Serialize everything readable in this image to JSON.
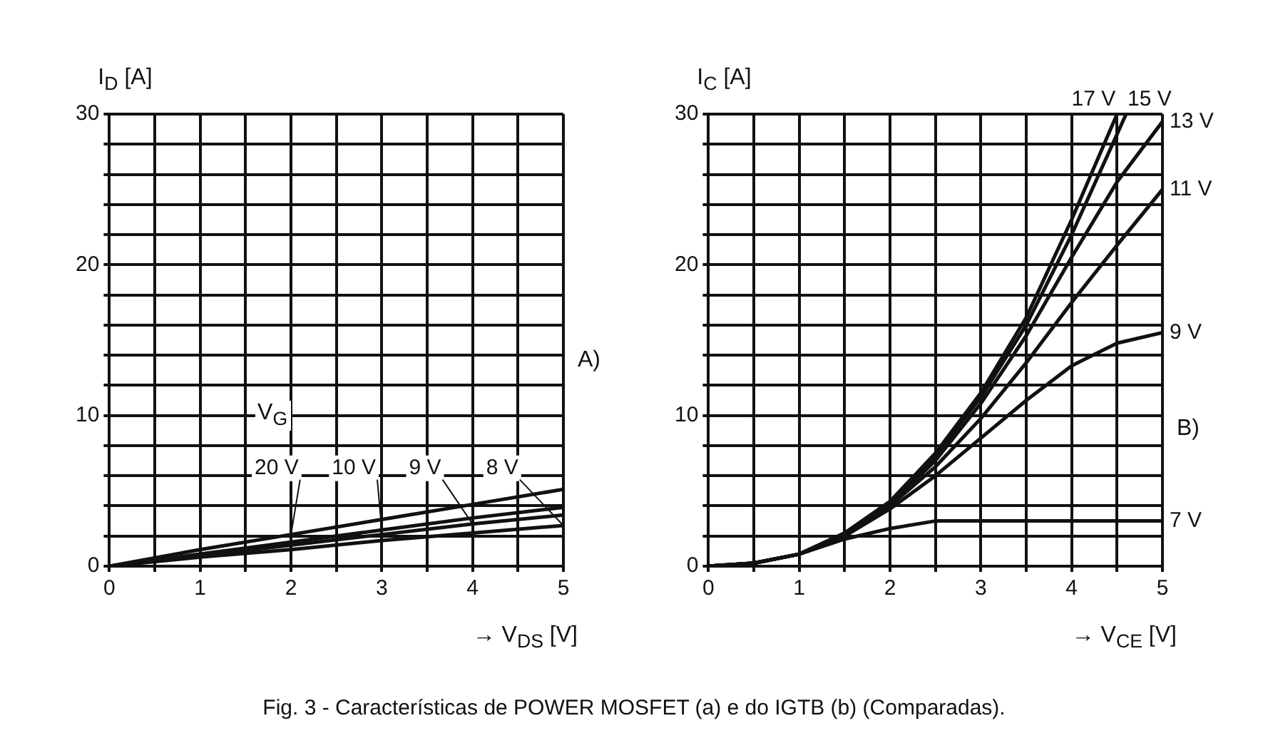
{
  "chart_data": [
    {
      "type": "line",
      "xlabel": "→ V$_{DS}$ [V]",
      "ylabel": "I$_{D}$ [A]",
      "legend_title": "V$_{G}$",
      "annotations": [
        "A)",
        "Fig. 3 - Características de POWER MOSFET (a) e do IGTB (b) (Comparadas)."
      ],
      "xlim": [
        0,
        5
      ],
      "ylim": [
        0,
        30
      ],
      "xticks": [
        0,
        {
          "value": 0.5,
          "label": null
        },
        1,
        {
          "value": 1.5,
          "label": null
        },
        2,
        {
          "value": 2.5,
          "label": null
        },
        3,
        {
          "value": 3.5,
          "label": null
        },
        4,
        {
          "value": 4.5,
          "label": null
        },
        5
      ],
      "yticks": [
        0,
        {
          "value": 2,
          "label": null
        },
        {
          "value": 4,
          "label": null
        },
        {
          "value": 6,
          "label": null
        },
        {
          "value": 8,
          "label": null
        },
        10,
        {
          "value": 12,
          "label": null
        },
        {
          "value": 14,
          "label": null
        },
        {
          "value": 16,
          "label": null
        },
        {
          "value": 18,
          "label": null
        },
        20,
        {
          "value": 22,
          "label": null
        },
        {
          "value": 24,
          "label": null
        },
        {
          "value": 26,
          "label": null
        },
        {
          "value": 28,
          "label": null
        },
        30
      ],
      "grid": true,
      "marker": "none",
      "series": [
        {
          "name": "20 V",
          "color": "#111111",
          "x": [
            0,
            1,
            2,
            3,
            4,
            5
          ],
          "values": [
            0,
            1.1,
            2.1,
            3.1,
            4.1,
            5.1
          ]
        },
        {
          "name": "10 V",
          "color": "#111111",
          "x": [
            0,
            1,
            2,
            3,
            4,
            5
          ],
          "values": [
            0,
            0.8,
            1.6,
            2.4,
            3.2,
            3.9
          ]
        },
        {
          "name": "9 V",
          "color": "#111111",
          "x": [
            0,
            1,
            2,
            3,
            4,
            5
          ],
          "values": [
            0,
            0.7,
            1.4,
            2.1,
            2.8,
            3.4
          ]
        },
        {
          "name": "8 V",
          "color": "#111111",
          "x": [
            0,
            1,
            2,
            3,
            4,
            5
          ],
          "values": [
            0,
            0.6,
            1.1,
            1.7,
            2.2,
            2.7
          ]
        }
      ]
    },
    {
      "type": "line",
      "xlabel": "→ V$_{CE}$ [V]",
      "ylabel": "I$_{C}$ [A]",
      "annotations": [
        "B)"
      ],
      "xlim": [
        0,
        5
      ],
      "ylim": [
        0,
        30
      ],
      "xticks": [
        0,
        {
          "value": 0.5,
          "label": null
        },
        1,
        {
          "value": 1.5,
          "label": null
        },
        2,
        {
          "value": 2.5,
          "label": null
        },
        3,
        {
          "value": 3.5,
          "label": null
        },
        4,
        {
          "value": 4.5,
          "label": null
        },
        5
      ],
      "yticks": [
        0,
        {
          "value": 2,
          "label": null
        },
        {
          "value": 4,
          "label": null
        },
        {
          "value": 6,
          "label": null
        },
        {
          "value": 8,
          "label": null
        },
        10,
        {
          "value": 12,
          "label": null
        },
        {
          "value": 14,
          "label": null
        },
        {
          "value": 16,
          "label": null
        },
        {
          "value": 18,
          "label": null
        },
        20,
        {
          "value": 22,
          "label": null
        },
        {
          "value": 24,
          "label": null
        },
        {
          "value": 26,
          "label": null
        },
        {
          "value": 28,
          "label": null
        },
        30
      ],
      "grid": true,
      "marker": "none",
      "series": [
        {
          "name": "17 V",
          "color": "#111111",
          "x": [
            0,
            0.5,
            1,
            1.5,
            2,
            2.5,
            3,
            3.5,
            4,
            4.5
          ],
          "values": [
            0,
            0.2,
            0.8,
            2.2,
            4.3,
            7.5,
            11.5,
            16.5,
            23,
            30
          ]
        },
        {
          "name": "15 V",
          "color": "#111111",
          "x": [
            0,
            0.5,
            1,
            1.5,
            2,
            2.5,
            3,
            3.5,
            4,
            4.6
          ],
          "values": [
            0,
            0.2,
            0.8,
            2.2,
            4.2,
            7.3,
            11.2,
            16,
            22,
            30
          ]
        },
        {
          "name": "13 V",
          "color": "#111111",
          "x": [
            0,
            0.5,
            1,
            1.5,
            2,
            2.5,
            3,
            3.5,
            4,
            4.5,
            5
          ],
          "values": [
            0,
            0.2,
            0.8,
            2.1,
            4.1,
            7,
            10.8,
            15.3,
            20.5,
            25.5,
            29.5
          ]
        },
        {
          "name": "11 V",
          "color": "#111111",
          "x": [
            0,
            0.5,
            1,
            1.5,
            2,
            2.5,
            3,
            3.5,
            4,
            4.5,
            5
          ],
          "values": [
            0,
            0.2,
            0.8,
            2.1,
            4,
            6.6,
            9.8,
            13.5,
            17.5,
            21.3,
            25
          ]
        },
        {
          "name": "9 V",
          "color": "#111111",
          "x": [
            0,
            0.5,
            1,
            1.5,
            2,
            2.5,
            3,
            3.5,
            4,
            4.5,
            5
          ],
          "values": [
            0,
            0.2,
            0.8,
            2,
            3.8,
            6,
            8.5,
            11,
            13.3,
            14.8,
            15.5
          ]
        },
        {
          "name": "7 V",
          "color": "#111111",
          "x": [
            0,
            0.5,
            1,
            1.5,
            2,
            2.5,
            3,
            3.5,
            4,
            4.5,
            5
          ],
          "values": [
            0,
            0.2,
            0.8,
            1.8,
            2.5,
            3,
            3,
            3,
            3,
            3,
            3
          ]
        }
      ]
    }
  ]
}
